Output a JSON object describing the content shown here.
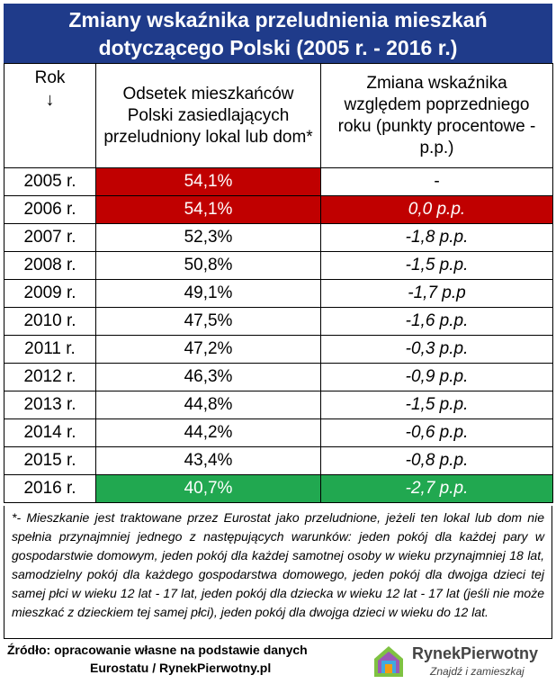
{
  "title": {
    "line1": "Zmiany wskaźnika przeludnienia mieszkań",
    "line2": "dotyczącego Polski (2005 r. - 2016 r.)"
  },
  "header": {
    "col1": "Rok",
    "col1_arrow": "↓",
    "col2": "Odsetek mieszkańców Polski zasiedlających przeludniony lokal lub dom*",
    "col3": "Zmiana wskaźnika względem poprzedniego roku (punkty procentowe - p.p.)"
  },
  "rows": [
    {
      "year": "2005 r.",
      "share": "54,1%",
      "change": "-",
      "highlight": "red"
    },
    {
      "year": "2006 r.",
      "share": "54,1%",
      "change": "0,0 p.p.",
      "highlight": "red"
    },
    {
      "year": "2007 r.",
      "share": "52,3%",
      "change": "-1,8 p.p.",
      "highlight": "none"
    },
    {
      "year": "2008 r.",
      "share": "50,8%",
      "change": "-1,5 p.p.",
      "highlight": "none"
    },
    {
      "year": "2009 r.",
      "share": "49,1%",
      "change": "-1,7 p.p",
      "highlight": "none"
    },
    {
      "year": "2010 r.",
      "share": "47,5%",
      "change": "-1,6 p.p.",
      "highlight": "none"
    },
    {
      "year": "2011 r.",
      "share": "47,2%",
      "change": "-0,3 p.p.",
      "highlight": "none"
    },
    {
      "year": "2012 r.",
      "share": "46,3%",
      "change": "-0,9 p.p.",
      "highlight": "none"
    },
    {
      "year": "2013 r.",
      "share": "44,8%",
      "change": "-1,5 p.p.",
      "highlight": "none"
    },
    {
      "year": "2014 r.",
      "share": "44,2%",
      "change": "-0,6 p.p.",
      "highlight": "none"
    },
    {
      "year": "2015 r.",
      "share": "43,4%",
      "change": "-0,8 p.p.",
      "highlight": "none"
    },
    {
      "year": "2016 r.",
      "share": "40,7%",
      "change": "-2,7 p.p.",
      "highlight": "green"
    }
  ],
  "footnote": "*- Mieszkanie jest traktowane przez Eurostat jako przeludnione, jeżeli ten lokal lub dom nie spełnia przynajmniej jednego z następujących warunków: jeden pokój dla każdej pary w gospodarstwie domowym, jeden pokój dla każdej samotnej osoby w wieku przynajmniej 18 lat, samodzielny pokój dla każdego gospodarstwa domowego, jeden pokój dla dwojga dzieci tej samej płci w wieku 12 lat - 17 lat, jeden pokój dla dziecka w wieku 12 lat - 17 lat (jeśli nie może mieszkać z dzieckiem tej samej płci), jeden pokój dla dwojga dzieci w wieku do 12 lat.",
  "source": {
    "line1": "Źródło: opracowanie własne na podstawie danych",
    "line2": "Eurostatu / RynekPierwotny.pl"
  },
  "logo": {
    "name": "RynekPierwotny",
    "tagline": "Znajdź i zamieszkaj"
  },
  "colors": {
    "title_bg": "#1f3b8a",
    "highlight_red": "#c00000",
    "highlight_green": "#21a850"
  }
}
